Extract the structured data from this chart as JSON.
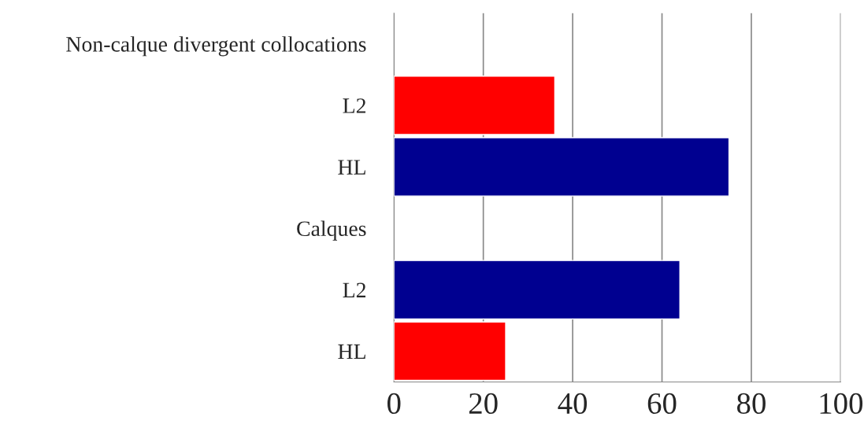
{
  "chart_data": {
    "type": "bar",
    "orientation": "horizontal",
    "categories": [
      "Non-calque divergent collocations",
      "L2",
      "HL",
      "Calques",
      "L2",
      "HL"
    ],
    "values": [
      null,
      36,
      75,
      null,
      64,
      25
    ],
    "colors": [
      "#ff0000",
      "#ff0000",
      "#000090",
      "#000090",
      "#000090",
      "#ff0000"
    ],
    "xlim": [
      0,
      100
    ],
    "xticks": [
      0,
      20,
      40,
      60,
      80,
      100
    ],
    "grid": "x",
    "legend": false
  }
}
